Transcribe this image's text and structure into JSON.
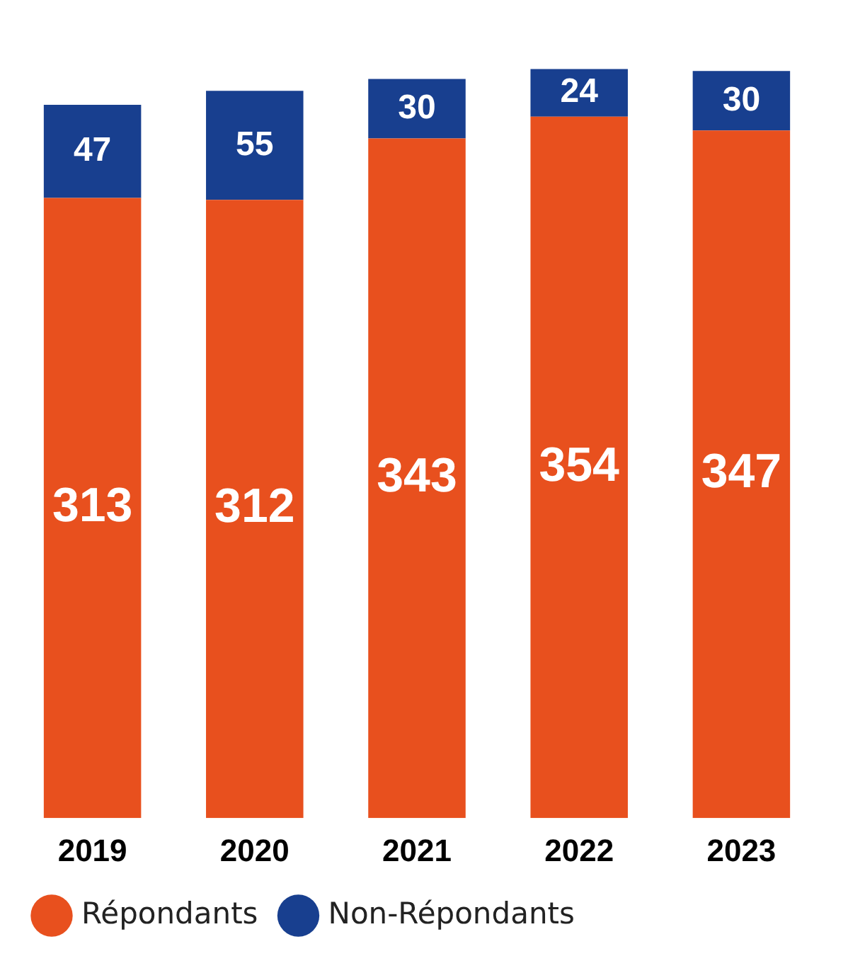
{
  "chart_data": {
    "type": "bar",
    "stacked": true,
    "categories": [
      "2019",
      "2020",
      "2021",
      "2022",
      "2023"
    ],
    "series": [
      {
        "name": "Répondants",
        "color": "#e8501e",
        "values": [
          313,
          312,
          343,
          354,
          347
        ]
      },
      {
        "name": "Non-Répondants",
        "color": "#183f8f",
        "values": [
          47,
          55,
          30,
          24,
          30
        ]
      }
    ],
    "data_labels": true,
    "legend": "bottom left",
    "grid": false,
    "tick_labels": "x"
  }
}
